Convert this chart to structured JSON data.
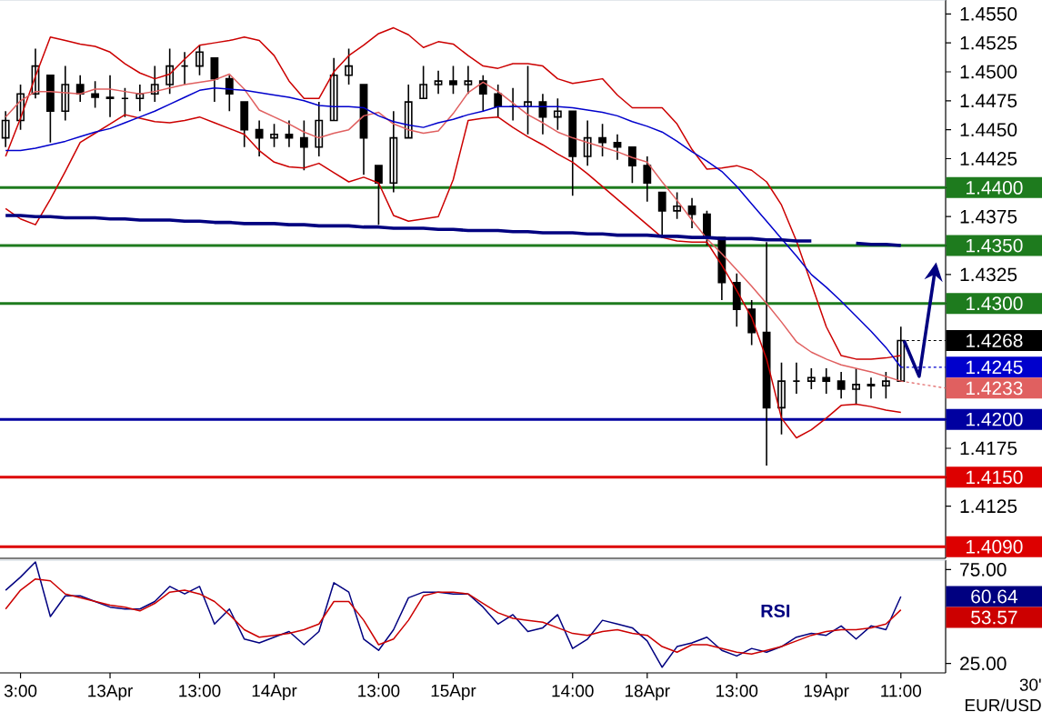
{
  "chart_data": [
    {
      "type": "candlestick",
      "categories": [
        null,
        null,
        null,
        null,
        null,
        null,
        null,
        null,
        null,
        null,
        null,
        null,
        null,
        null,
        null,
        null,
        null,
        null,
        null,
        null,
        null,
        null,
        null,
        null,
        null,
        null,
        null,
        null,
        null,
        null,
        null,
        null,
        null,
        null,
        null,
        null,
        null,
        null,
        null,
        null,
        null,
        null,
        null,
        null,
        null,
        null,
        null,
        null,
        null,
        null,
        null,
        null,
        null,
        null,
        null,
        null,
        null,
        null,
        null,
        null,
        null
      ],
      "ohlc": [
        [
          1.4443,
          1.4466,
          1.4435,
          1.4458
        ],
        [
          1.4458,
          1.4489,
          1.445,
          1.4481
        ],
        [
          1.4481,
          1.452,
          1.4477,
          1.4505
        ],
        [
          1.4497,
          1.4497,
          1.4439,
          1.4466
        ],
        [
          1.4466,
          1.4505,
          1.4458,
          1.4489
        ],
        [
          1.4489,
          1.4497,
          1.4474,
          1.4481
        ],
        [
          1.4481,
          1.4492,
          1.4469,
          1.4478
        ],
        [
          1.4478,
          1.4497,
          1.4461,
          1.4477
        ],
        [
          1.4477,
          1.4486,
          1.4461,
          1.4477
        ],
        [
          1.4477,
          1.4489,
          1.4466,
          1.4481
        ],
        [
          1.4481,
          1.4505,
          1.4474,
          1.4489
        ],
        [
          1.4489,
          1.452,
          1.4481,
          1.4505
        ],
        [
          1.4505,
          1.4517,
          1.4489,
          1.4505
        ],
        [
          1.4505,
          1.4523,
          1.4497,
          1.4517
        ],
        [
          1.4512,
          1.4512,
          1.4474,
          1.4494
        ],
        [
          1.4494,
          1.4497,
          1.4466,
          1.4481
        ],
        [
          1.4474,
          1.4474,
          1.4435,
          1.445
        ],
        [
          1.445,
          1.4458,
          1.4427,
          1.4443
        ],
        [
          1.4443,
          1.4455,
          1.4435,
          1.4446
        ],
        [
          1.4446,
          1.4458,
          1.4435,
          1.4443
        ],
        [
          1.4443,
          1.4458,
          1.4415,
          1.4435
        ],
        [
          1.4435,
          1.4474,
          1.4427,
          1.4458
        ],
        [
          1.4458,
          1.4512,
          1.4458,
          1.4497
        ],
        [
          1.4497,
          1.452,
          1.4489,
          1.4505
        ],
        [
          1.4489,
          1.4489,
          1.4411,
          1.4443
        ],
        [
          1.4419,
          1.4419,
          1.4368,
          1.4404
        ],
        [
          1.4404,
          1.4466,
          1.4396,
          1.4443
        ],
        [
          1.4443,
          1.4489,
          1.4443,
          1.4474
        ],
        [
          1.4477,
          1.4505,
          1.4477,
          1.4489
        ],
        [
          1.4489,
          1.4501,
          1.4481,
          1.4492
        ],
        [
          1.4492,
          1.4505,
          1.4481,
          1.4489
        ],
        [
          1.4489,
          1.4505,
          1.4481,
          1.4492
        ],
        [
          1.4492,
          1.4497,
          1.4466,
          1.4481
        ],
        [
          1.4481,
          1.4489,
          1.4461,
          1.447
        ],
        [
          1.447,
          1.4486,
          1.4458,
          1.447
        ],
        [
          1.447,
          1.4505,
          1.4446,
          1.4474
        ],
        [
          1.4474,
          1.4481,
          1.4446,
          1.4461
        ],
        [
          1.4461,
          1.4477,
          1.445,
          1.4466
        ],
        [
          1.4466,
          1.4466,
          1.4393,
          1.4427
        ],
        [
          1.4427,
          1.4458,
          1.4419,
          1.4443
        ],
        [
          1.4443,
          1.4455,
          1.4427,
          1.4439
        ],
        [
          1.4439,
          1.4446,
          1.4424,
          1.4435
        ],
        [
          1.4435,
          1.4435,
          1.4404,
          1.4419
        ],
        [
          1.4419,
          1.4427,
          1.4388,
          1.4404
        ],
        [
          1.4396,
          1.4396,
          1.4357,
          1.438
        ],
        [
          1.438,
          1.4396,
          1.4373,
          1.4384
        ],
        [
          1.4384,
          1.4391,
          1.4365,
          1.4377
        ],
        [
          1.4377,
          1.438,
          1.435,
          1.4357
        ],
        [
          1.4357,
          1.4357,
          1.4303,
          1.4318
        ],
        [
          1.4318,
          1.4326,
          1.428,
          1.4295
        ],
        [
          1.4295,
          1.4303,
          1.4264,
          1.4275
        ],
        [
          1.4275,
          1.4353,
          1.416,
          1.421
        ],
        [
          1.421,
          1.4249,
          1.4187,
          1.4233
        ],
        [
          1.4233,
          1.4249,
          1.4222,
          1.4233
        ],
        [
          1.4233,
          1.4244,
          1.4226,
          1.4236
        ],
        [
          1.4236,
          1.4244,
          1.4222,
          1.4233
        ],
        [
          1.4233,
          1.4241,
          1.4218,
          1.4226
        ],
        [
          1.4226,
          1.4244,
          1.4213,
          1.423
        ],
        [
          1.423,
          1.4236,
          1.4218,
          1.4229
        ],
        [
          1.4229,
          1.4241,
          1.4218,
          1.4233
        ],
        [
          1.4233,
          1.428,
          1.4233,
          1.4268
        ]
      ],
      "ylim": [
        1.408,
        1.4562
      ],
      "yticks": [
        {
          "value": 1.455,
          "label": "1.4550"
        },
        {
          "value": 1.4525,
          "label": "1.4525"
        },
        {
          "value": 1.45,
          "label": "1.4500"
        },
        {
          "value": 1.4475,
          "label": "1.4475"
        },
        {
          "value": 1.445,
          "label": "1.4450"
        },
        {
          "value": 1.4425,
          "label": "1.4425"
        },
        {
          "value": 1.44,
          "label": null
        },
        {
          "value": 1.4375,
          "label": "1.4375"
        },
        {
          "value": 1.435,
          "label": null
        },
        {
          "value": 1.4325,
          "label": "1.4325"
        },
        {
          "value": 1.43,
          "label": null
        },
        {
          "value": 1.42,
          "label": null
        },
        {
          "value": 1.4175,
          "label": "1.4175"
        },
        {
          "value": 1.415,
          "label": null
        },
        {
          "value": 1.4125,
          "label": "1.4125"
        }
      ],
      "value_labels": [
        null,
        null,
        null,
        null,
        null,
        null,
        null,
        null,
        null,
        null,
        null,
        null,
        null,
        null,
        null,
        null,
        null,
        null,
        null,
        null,
        null,
        null,
        null,
        null,
        null,
        null,
        null,
        null,
        null,
        null,
        null,
        null,
        null,
        null,
        null,
        null,
        null,
        null,
        null,
        null,
        null,
        null,
        null,
        null,
        null,
        null,
        null,
        null,
        null,
        null,
        null,
        null,
        null,
        null,
        null,
        null,
        null,
        null,
        null,
        null,
        "1.4268"
      ],
      "tick_labels": "y",
      "series": [
        {
          "type": "line",
          "color": "#cc0000",
          "values": [
            1.4427,
            1.446,
            1.4496,
            1.453,
            1.4527,
            1.4524,
            1.4522,
            1.4517,
            1.4507,
            1.4499,
            1.4494,
            1.4498,
            1.4511,
            1.4523,
            1.4525,
            1.4527,
            1.453,
            1.4527,
            1.4514,
            1.4492,
            1.4477,
            1.4477,
            1.45,
            1.4514,
            1.4523,
            1.4533,
            1.4538,
            1.4532,
            1.4521,
            1.4526,
            1.4524,
            1.4514,
            1.4505,
            1.4503,
            1.4507,
            1.4507,
            1.4505,
            1.4494,
            1.449,
            1.4492,
            1.4494,
            1.448,
            1.4469,
            1.4469,
            1.4469,
            1.4455,
            1.4433,
            1.4416,
            1.4417,
            1.4419,
            1.4415,
            1.4405,
            1.4385,
            1.4354,
            1.4317,
            1.428,
            1.4255,
            1.4252,
            1.4252,
            1.4253,
            1.4255
          ]
        },
        {
          "type": "line",
          "color": "#e06060",
          "values": [
            1.4461,
            1.4475,
            1.4483,
            1.4483,
            1.4482,
            1.4481,
            1.4485,
            1.4485,
            1.4483,
            1.4481,
            1.4483,
            1.4486,
            1.4489,
            1.4491,
            1.4493,
            1.4498,
            1.4485,
            1.4467,
            1.4461,
            1.4455,
            1.4448,
            1.4443,
            1.4447,
            1.445,
            1.4462,
            1.4465,
            1.4455,
            1.445,
            1.4447,
            1.4449,
            1.4464,
            1.4482,
            1.4491,
            1.4483,
            1.4473,
            1.4463,
            1.4456,
            1.4448,
            1.4443,
            1.4439,
            1.4435,
            1.4431,
            1.4426,
            1.4422,
            1.4405,
            1.4389,
            1.4372,
            1.4356,
            1.4343,
            1.4329,
            1.4315,
            1.43,
            1.4284,
            1.4267,
            1.4258,
            1.4252,
            1.4247,
            1.4244,
            1.4241,
            1.4237,
            1.4233
          ],
          "value_labels": [
            null,
            null,
            null,
            null,
            null,
            null,
            null,
            null,
            null,
            null,
            null,
            null,
            null,
            null,
            null,
            null,
            null,
            null,
            null,
            null,
            null,
            null,
            null,
            null,
            null,
            null,
            null,
            null,
            null,
            null,
            null,
            null,
            null,
            null,
            null,
            null,
            null,
            null,
            null,
            null,
            null,
            null,
            null,
            null,
            null,
            null,
            null,
            null,
            null,
            null,
            null,
            null,
            null,
            null,
            null,
            null,
            null,
            null,
            null,
            null,
            "1.4233"
          ]
        },
        {
          "type": "line",
          "color": "#cc0000",
          "values": [
            1.4382,
            1.4373,
            1.4368,
            1.439,
            1.4414,
            1.4439,
            1.4447,
            1.4455,
            1.4463,
            1.446,
            1.4457,
            1.4456,
            1.4458,
            1.4461,
            1.4456,
            1.4451,
            1.4446,
            1.4432,
            1.4422,
            1.4418,
            1.4417,
            1.4421,
            1.4413,
            1.4405,
            1.4409,
            1.4404,
            1.4376,
            1.4371,
            1.4373,
            1.4375,
            1.4407,
            1.4458,
            1.446,
            1.4461,
            1.4452,
            1.4444,
            1.4437,
            1.4429,
            1.4422,
            1.4412,
            1.4401,
            1.439,
            1.4379,
            1.4368,
            1.4357,
            1.4354,
            1.4353,
            1.4353,
            1.4333,
            1.4311,
            1.4288,
            1.4252,
            1.4201,
            1.4184,
            1.4191,
            1.4201,
            1.4212,
            1.4213,
            1.4211,
            1.4208,
            1.4206
          ]
        },
        {
          "type": "line",
          "color": "#0000cc",
          "values": [
            1.4432,
            1.4432,
            1.4434,
            1.4437,
            1.444,
            1.4444,
            1.4448,
            1.4451,
            1.4456,
            1.4461,
            1.4466,
            1.4472,
            1.4478,
            1.4484,
            1.4486,
            1.4485,
            1.4484,
            1.4482,
            1.448,
            1.4478,
            1.4475,
            1.4471,
            1.447,
            1.447,
            1.4469,
            1.4462,
            1.4457,
            1.4454,
            1.4452,
            1.4456,
            1.4459,
            1.4463,
            1.4466,
            1.447,
            1.447,
            1.447,
            1.447,
            1.447,
            1.4469,
            1.4467,
            1.4465,
            1.4462,
            1.4457,
            1.4453,
            1.4448,
            1.444,
            1.4431,
            1.4423,
            1.4414,
            1.4401,
            1.4386,
            1.4371,
            1.4356,
            1.4341,
            1.4325,
            1.4314,
            1.4302,
            1.4289,
            1.4276,
            1.4262,
            1.4245
          ],
          "value_labels": [
            null,
            null,
            null,
            null,
            null,
            null,
            null,
            null,
            null,
            null,
            null,
            null,
            null,
            null,
            null,
            null,
            null,
            null,
            null,
            null,
            null,
            null,
            null,
            null,
            null,
            null,
            null,
            null,
            null,
            null,
            null,
            null,
            null,
            null,
            null,
            null,
            null,
            null,
            null,
            null,
            null,
            null,
            null,
            null,
            null,
            null,
            null,
            null,
            null,
            null,
            null,
            null,
            null,
            null,
            null,
            null,
            null,
            null,
            null,
            null,
            "1.4245"
          ]
        },
        {
          "type": "line",
          "color": "#000080",
          "values": [
            1.4376,
            1.4376,
            1.4375,
            1.4375,
            1.4374,
            1.4374,
            1.4374,
            1.4373,
            1.4373,
            1.4372,
            1.4372,
            1.4372,
            1.4371,
            1.4371,
            1.437,
            1.437,
            1.4369,
            1.4369,
            1.4369,
            1.4368,
            1.4368,
            1.4367,
            1.4367,
            1.4367,
            1.4366,
            1.4366,
            1.4365,
            1.4365,
            1.4365,
            1.4364,
            1.4364,
            1.4363,
            1.4363,
            1.4363,
            1.4362,
            1.4362,
            1.4361,
            1.4361,
            1.4361,
            1.436,
            1.436,
            1.4359,
            1.4359,
            1.4359,
            1.4358,
            1.4358,
            1.4357,
            1.4357,
            1.4356,
            1.4356,
            1.4356,
            1.4355,
            1.4355,
            1.4354,
            1.4354,
            null,
            null,
            1.4352,
            1.4351,
            1.4351,
            1.435
          ]
        }
      ],
      "ref_lines": [
        {
          "axis": "y",
          "value": 1.44,
          "label": "1.4400",
          "color": "#1e7b1e"
        },
        {
          "axis": "y",
          "value": 1.435,
          "label": "1.4350",
          "color": "#1e7b1e"
        },
        {
          "axis": "y",
          "value": 1.43,
          "label": "1.4300",
          "color": "#1e7b1e"
        },
        {
          "axis": "y",
          "value": 1.42,
          "label": "1.4200",
          "color": "#0000a0"
        },
        {
          "axis": "y",
          "value": 1.415,
          "label": "1.4150",
          "color": "#dd0000"
        },
        {
          "axis": "y",
          "value": 1.409,
          "label": "1.4090",
          "color": "#dd0000"
        }
      ]
    },
    {
      "type": "line",
      "categories": [
        null,
        "3:00",
        null,
        null,
        null,
        null,
        null,
        "13Apr",
        null,
        null,
        null,
        null,
        null,
        "13:00",
        null,
        null,
        null,
        null,
        "14Apr",
        null,
        null,
        null,
        null,
        null,
        null,
        "13:00",
        null,
        null,
        null,
        null,
        "15Apr",
        null,
        null,
        null,
        null,
        null,
        null,
        null,
        "14:00",
        null,
        null,
        null,
        null,
        "18Apr",
        null,
        null,
        null,
        null,
        null,
        "13:00",
        null,
        null,
        null,
        null,
        null,
        "19Apr",
        null,
        null,
        null,
        null,
        "11:00"
      ],
      "series": [
        {
          "name": "RSI",
          "color": "#000080",
          "values": [
            64,
            71,
            79,
            50,
            61,
            61,
            58,
            55,
            54,
            54,
            58,
            66,
            62,
            66,
            46,
            54,
            38,
            36,
            39,
            42,
            35,
            42,
            68,
            63,
            38,
            32,
            43,
            60,
            63,
            63,
            62,
            62,
            55,
            46,
            51,
            42,
            44,
            51,
            33,
            38,
            48,
            46,
            44,
            37,
            23,
            34,
            36,
            39,
            32,
            29,
            33,
            31,
            34,
            39,
            41,
            40,
            45,
            38,
            45,
            43,
            60.64
          ]
        },
        {
          "color": "#cc0000",
          "values": [
            54,
            64,
            70,
            69,
            62,
            60,
            58,
            56,
            55,
            53,
            57,
            63,
            64,
            62,
            58,
            51,
            43,
            39,
            40,
            41,
            43,
            46,
            58,
            58,
            48,
            35,
            38,
            48,
            61,
            63,
            63,
            62,
            57,
            52,
            49,
            48,
            47,
            44,
            41,
            40,
            42,
            43,
            41,
            40,
            34,
            31,
            35,
            35,
            33,
            31,
            30,
            32,
            34,
            37,
            40,
            42,
            43,
            43,
            44,
            46,
            53.57
          ]
        }
      ],
      "ylim": [
        20,
        80
      ],
      "yticks": [
        {
          "value": 75,
          "label": "75.00"
        },
        {
          "value": 25,
          "label": "25.00"
        }
      ],
      "annotations": [
        "60.64",
        "53.57",
        "30'",
        "EUR/USD"
      ]
    }
  ]
}
